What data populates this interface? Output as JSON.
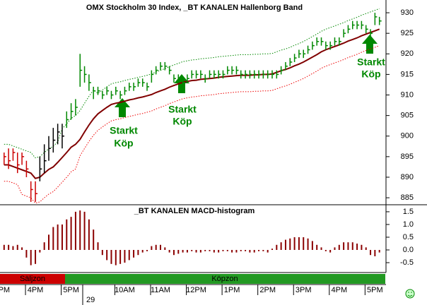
{
  "chart_data": [
    {
      "type": "ohlc",
      "title": "OMX Stockholm 30 Index, _BT KANALEN Hallenborg Band",
      "categories": [
        "PM",
        null,
        null,
        null,
        null,
        null,
        null,
        "4PM",
        null,
        null,
        null,
        null,
        null,
        null,
        null,
        "5PM",
        null,
        null,
        null,
        null,
        null,
        null,
        null,
        null,
        null,
        null,
        null,
        "10AM",
        null,
        null,
        null,
        null,
        null,
        null,
        null,
        "11AM",
        null,
        null,
        null,
        null,
        null,
        null,
        null,
        "12PM",
        null,
        null,
        null,
        null,
        null,
        null,
        null,
        "1PM",
        null,
        null,
        null,
        null,
        null,
        null,
        null,
        "2PM",
        null,
        null,
        null,
        null,
        null,
        null,
        null,
        "3PM",
        null,
        null,
        null,
        null,
        null,
        null,
        null,
        "4PM",
        null,
        null,
        null,
        null,
        null,
        null,
        null,
        "5PM",
        null
      ],
      "high": [
        896,
        897,
        897,
        896,
        896,
        894,
        889,
        889,
        895,
        898,
        900,
        902,
        903,
        903,
        906,
        908,
        909,
        920,
        917,
        915,
        912,
        912,
        911,
        912,
        911,
        912,
        911,
        912,
        913,
        913,
        914,
        914,
        913,
        916,
        917,
        918,
        918,
        917,
        915,
        915,
        914,
        915,
        916,
        916,
        916,
        915,
        916,
        916,
        916,
        916,
        917,
        917,
        917,
        916,
        916,
        916,
        916,
        916,
        916,
        916,
        916,
        916,
        917,
        918,
        919,
        920,
        921,
        921,
        922,
        923,
        924,
        924,
        923,
        923,
        924,
        924,
        926,
        927,
        928,
        928,
        928,
        927,
        926,
        930,
        929
      ],
      "low": [
        893,
        892,
        894,
        891,
        893,
        890,
        884,
        884,
        889,
        891,
        894,
        896,
        898,
        897,
        902,
        904,
        905,
        912,
        913,
        911,
        909,
        910,
        909,
        910,
        909,
        910,
        909,
        910,
        911,
        911,
        912,
        912,
        911,
        913,
        915,
        916,
        916,
        915,
        913,
        913,
        912,
        913,
        914,
        914,
        914,
        913,
        914,
        914,
        914,
        914,
        915,
        915,
        915,
        914,
        914,
        914,
        914,
        914,
        914,
        914,
        914,
        914,
        915,
        916,
        917,
        918,
        919,
        919,
        920,
        921,
        922,
        922,
        921,
        921,
        922,
        922,
        924,
        925,
        926,
        926,
        926,
        925,
        924,
        927,
        927
      ],
      "close": [
        895,
        894,
        896,
        893,
        895,
        892,
        887,
        886,
        892,
        894,
        897,
        899,
        901,
        900,
        904,
        906,
        907,
        916,
        915,
        913,
        911,
        911,
        910,
        911,
        910,
        911,
        910,
        911,
        912,
        912,
        913,
        913,
        912,
        915,
        916,
        917,
        917,
        916,
        914,
        914,
        913,
        914,
        915,
        915,
        915,
        914,
        915,
        915,
        915,
        915,
        916,
        916,
        916,
        915,
        915,
        915,
        915,
        915,
        915,
        915,
        915,
        915,
        916,
        917,
        918,
        919,
        920,
        920,
        921,
        922,
        923,
        923,
        922,
        922,
        923,
        923,
        925,
        926,
        927,
        927,
        927,
        926,
        925,
        929,
        928
      ],
      "bar_colors": [
        "#cc0000",
        "#cc0000",
        "#cc0000",
        "#cc0000",
        "#cc0000",
        "#cc0000",
        "#cc0000",
        "#cc0000",
        "#000000",
        "#000000",
        "#000000",
        "#000000",
        "#000000",
        "#000000",
        "#008800",
        "#008800",
        "#008800",
        "#008800",
        "#008800",
        "#008800",
        "#008800",
        "#008800",
        "#008800",
        "#008800",
        "#008800",
        "#008800",
        "#008800",
        "#008800",
        "#008800",
        "#008800",
        "#008800",
        "#008800",
        "#008800",
        "#008800",
        "#008800",
        "#008800",
        "#008800",
        "#008800",
        "#008800",
        "#008800",
        "#008800",
        "#008800",
        "#008800",
        "#008800",
        "#008800",
        "#008800",
        "#008800",
        "#008800",
        "#008800",
        "#008800",
        "#008800",
        "#008800",
        "#008800",
        "#008800",
        "#008800",
        "#008800",
        "#008800",
        "#008800",
        "#008800",
        "#008800",
        "#008800",
        "#008800",
        "#008800",
        "#008800",
        "#008800",
        "#008800",
        "#008800",
        "#008800",
        "#008800",
        "#008800",
        "#008800",
        "#008800",
        "#008800",
        "#008800",
        "#008800",
        "#008800",
        "#008800",
        "#008800",
        "#008800",
        "#008800",
        "#008800",
        "#008800",
        "#008800",
        "#008800",
        "#008800"
      ],
      "lines": [
        {
          "color": "#800000",
          "dashed": false,
          "values": [
            893,
            893,
            892.6,
            892.2,
            891.8,
            891.4,
            891,
            889.7,
            890,
            891,
            891.9,
            892.5,
            893.6,
            894.8,
            896,
            897.3,
            898,
            899.2,
            901,
            902.7,
            904.2,
            905.4,
            906.2,
            907,
            907.7,
            908,
            908.2,
            908.5,
            908.8,
            909,
            909.3,
            909.5,
            909.8,
            910.1,
            910.6,
            911,
            911.4,
            911.9,
            912.3,
            912.7,
            913.1,
            913.3,
            913.5,
            913.6,
            913.8,
            913.9,
            914,
            914.1,
            914.3,
            914.4,
            914.5,
            914.6,
            914.7,
            914.8,
            914.8,
            914.8,
            914.9,
            914.9,
            915,
            915,
            915.1,
            915.5,
            915.9,
            916.2,
            916.6,
            917.1,
            917.5,
            918,
            918.6,
            919.2,
            919.8,
            920.5,
            921,
            921.4,
            921.8,
            922.2,
            922.6,
            923.1,
            923.5,
            923.9,
            924.4,
            924.8,
            925.2,
            925.6,
            926
          ]
        },
        {
          "color": "#008800",
          "dashed": true,
          "values": [
            898,
            898,
            897.6,
            897.2,
            896.8,
            896.4,
            896,
            894.7,
            895,
            896,
            896.9,
            897.5,
            898.6,
            901.8,
            903,
            904.3,
            905,
            906.2,
            908,
            909.7,
            911.2,
            910.4,
            911.2,
            912,
            912.7,
            913,
            913.2,
            913.5,
            913.8,
            914,
            914.3,
            914.5,
            914.8,
            915.1,
            915.6,
            916,
            916.4,
            916.9,
            917.3,
            917.7,
            918.1,
            918.3,
            918.5,
            918.6,
            918.8,
            918.9,
            919,
            919.1,
            919.3,
            919.4,
            919.5,
            919.6,
            919.7,
            919.8,
            919.8,
            919.8,
            919.9,
            919.9,
            920,
            920,
            920.1,
            920.5,
            920.9,
            921.2,
            921.6,
            922.1,
            922.5,
            923,
            923.6,
            924.2,
            924.8,
            925.5,
            926,
            926.4,
            926.8,
            927.2,
            927.6,
            928.1,
            928.5,
            928.9,
            929.4,
            929.8,
            930.2,
            930.6,
            931
          ]
        },
        {
          "color": "#ee0000",
          "dashed": true,
          "values": [
            889,
            889,
            888.6,
            888.2,
            885.8,
            885.4,
            885,
            883.7,
            884,
            885,
            885.9,
            886.5,
            887.6,
            888.8,
            890,
            891.3,
            892,
            895.2,
            897,
            898.7,
            900.2,
            901.4,
            902.2,
            903,
            903.7,
            904,
            904.2,
            904.5,
            904.8,
            905,
            905.3,
            905.5,
            905.8,
            906.1,
            906.6,
            907,
            907.4,
            907.9,
            908.3,
            908.7,
            909.1,
            909.3,
            909.5,
            909.6,
            909.8,
            909.9,
            910,
            910.1,
            910.3,
            910.4,
            910.5,
            910.6,
            910.7,
            910.8,
            910.8,
            910.8,
            910.9,
            910.9,
            911,
            911,
            911.1,
            911.5,
            911.9,
            912.2,
            912.6,
            913.1,
            913.5,
            914,
            914.6,
            915.2,
            915.8,
            916.5,
            917,
            917.4,
            917.8,
            918.2,
            918.6,
            919.1,
            919.5,
            919.9,
            920.4,
            920.8,
            921.2,
            921.6,
            922
          ]
        }
      ],
      "ylim": [
        883.3,
        933.1
      ],
      "yticks": [
        885,
        890,
        895,
        900,
        905,
        910,
        915,
        920,
        925,
        930
      ]
    },
    {
      "type": "histogram-bars",
      "title": "_BT KANALEN MACD-histogram",
      "color": "#8b0000",
      "values": [
        0.2,
        0.2,
        0.15,
        0.2,
        0.1,
        -0.3,
        -0.6,
        -0.55,
        -0.1,
        0.3,
        0.6,
        0.9,
        1.0,
        1.0,
        1.2,
        1.3,
        1.5,
        1.55,
        1.5,
        1.2,
        0.8,
        0.3,
        -0.2,
        -0.4,
        -0.55,
        -0.6,
        -0.55,
        -0.5,
        -0.4,
        -0.3,
        -0.2,
        -0.1,
        -0.05,
        0.15,
        0.2,
        0.2,
        0.1,
        -0.1,
        -0.2,
        -0.15,
        -0.1,
        -0.1,
        -0.05,
        -0.1,
        -0.1,
        -0.05,
        -0.05,
        -0.1,
        -0.1,
        -0.05,
        -0.05,
        -0.1,
        -0.1,
        -0.05,
        -0.05,
        -0.1,
        -0.1,
        -0.05,
        -0.05,
        -0.1,
        0.05,
        0.2,
        0.3,
        0.4,
        0.45,
        0.5,
        0.5,
        0.5,
        0.45,
        0.35,
        0.2,
        0.1,
        -0.05,
        -0.1,
        0.1,
        0.2,
        0.3,
        0.3,
        0.3,
        0.25,
        0.2,
        0.1,
        -0.2,
        -0.25,
        -0.1
      ],
      "ylim": [
        -0.86,
        1.72
      ],
      "yticks": [
        -0.5,
        {
          "value": 0,
          "label": "0.0"
        },
        0.5,
        {
          "value": 1,
          "label": "1.0"
        },
        1.5
      ]
    }
  ],
  "annotations": [
    [
      "Starkt",
      "Köp"
    ],
    [
      "Starkt",
      "Köp"
    ],
    [
      "Starkt",
      "Köp"
    ]
  ],
  "zones": [
    "Säljzon",
    "Köpzon"
  ],
  "date_label": "29"
}
